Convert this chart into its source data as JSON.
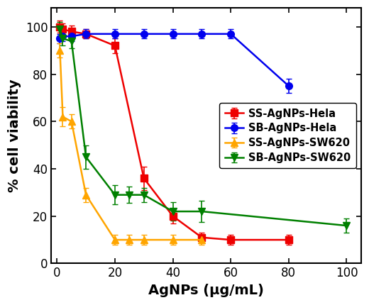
{
  "title": "",
  "xlabel": "AgNPs (μg/mL)",
  "ylabel": "% cell viability",
  "xlim": [
    -2,
    105
  ],
  "ylim": [
    0,
    108
  ],
  "xticks": [
    0,
    20,
    40,
    60,
    80,
    100
  ],
  "yticks": [
    0,
    20,
    40,
    60,
    80,
    100
  ],
  "series": [
    {
      "label": "SS-AgNPs-Hela",
      "color": "#EE0000",
      "marker": "s",
      "x": [
        1,
        2,
        5,
        10,
        20,
        30,
        40,
        50,
        60,
        80
      ],
      "y": [
        100,
        99,
        98,
        97,
        92,
        36,
        20,
        11,
        10,
        10
      ],
      "yerr": [
        2.5,
        2.5,
        2.5,
        2.0,
        3.0,
        5.0,
        3.0,
        2.0,
        2.0,
        2.0
      ]
    },
    {
      "label": "SB-AgNPs-Hela",
      "color": "#0000EE",
      "marker": "o",
      "x": [
        1,
        2,
        5,
        10,
        20,
        30,
        40,
        50,
        60,
        80
      ],
      "y": [
        95,
        96,
        96,
        97,
        97,
        97,
        97,
        97,
        97,
        75
      ],
      "yerr": [
        2.0,
        2.0,
        2.0,
        2.0,
        2.0,
        2.0,
        2.0,
        2.0,
        2.0,
        3.0
      ]
    },
    {
      "label": "SS-AgNPs-SW620",
      "color": "#FFA500",
      "marker": "^",
      "x": [
        1,
        2,
        5,
        10,
        20,
        25,
        30,
        40,
        50
      ],
      "y": [
        90,
        62,
        60,
        29,
        10,
        10,
        10,
        10,
        10
      ],
      "yerr": [
        3.0,
        4.0,
        3.0,
        3.0,
        2.0,
        2.0,
        2.0,
        2.0,
        2.0
      ]
    },
    {
      "label": "SB-AgNPs-SW620",
      "color": "#008000",
      "marker": "v",
      "x": [
        1,
        2,
        5,
        10,
        20,
        25,
        30,
        40,
        50,
        100
      ],
      "y": [
        99,
        95,
        94,
        45,
        29,
        29,
        29,
        22,
        22,
        16
      ],
      "yerr": [
        3.0,
        3.0,
        3.0,
        5.0,
        4.0,
        3.5,
        3.0,
        4.0,
        4.5,
        3.0
      ]
    }
  ],
  "legend_loc": "center right",
  "legend_fontsize": 10.5,
  "axis_label_fontsize": 14,
  "tick_fontsize": 12,
  "linewidth": 1.8,
  "markersize": 7,
  "capsize": 3,
  "elinewidth": 1.2
}
